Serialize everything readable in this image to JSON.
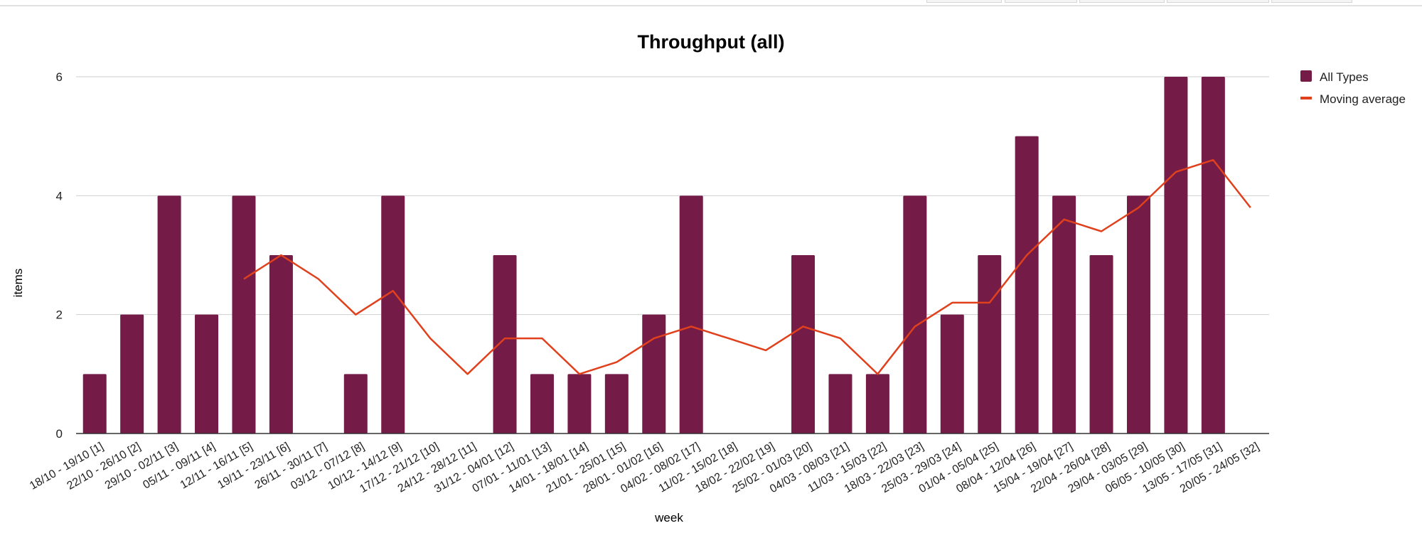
{
  "chart_data": {
    "type": "bar",
    "title": "Throughput (all)",
    "xlabel": "week",
    "ylabel": "items",
    "ylim": [
      0,
      6
    ],
    "yticks": [
      0,
      2,
      4,
      6
    ],
    "grid": true,
    "legend_position": "top-right",
    "categories": [
      "18/10 - 19/10 [1]",
      "22/10 - 26/10 [2]",
      "29/10 - 02/11 [3]",
      "05/11 - 09/11 [4]",
      "12/11 - 16/11 [5]",
      "19/11 - 23/11 [6]",
      "26/11 - 30/11 [7]",
      "03/12 - 07/12 [8]",
      "10/12 - 14/12 [9]",
      "17/12 - 21/12 [10]",
      "24/12 - 28/12 [11]",
      "31/12 - 04/01 [12]",
      "07/01 - 11/01 [13]",
      "14/01 - 18/01 [14]",
      "21/01 - 25/01 [15]",
      "28/01 - 01/02 [16]",
      "04/02 - 08/02 [17]",
      "11/02 - 15/02 [18]",
      "18/02 - 22/02 [19]",
      "25/02 - 01/03 [20]",
      "04/03 - 08/03 [21]",
      "11/03 - 15/03 [22]",
      "18/03 - 22/03 [23]",
      "25/03 - 29/03 [24]",
      "01/04 - 05/04 [25]",
      "08/04 - 12/04 [26]",
      "15/04 - 19/04 [27]",
      "22/04 - 26/04 [28]",
      "29/04 - 03/05 [29]",
      "06/05 - 10/05 [30]",
      "13/05 - 17/05 [31]",
      "20/05 - 24/05 [32]"
    ],
    "series": [
      {
        "name": "All Types",
        "type": "bar",
        "color": "#741b47",
        "values": [
          1,
          2,
          4,
          2,
          4,
          3,
          0,
          1,
          4,
          0,
          0,
          3,
          1,
          1,
          1,
          2,
          4,
          0,
          0,
          3,
          1,
          1,
          4,
          2,
          3,
          5,
          4,
          3,
          4,
          6,
          6,
          0
        ]
      },
      {
        "name": "Moving average",
        "type": "line",
        "color": "#e0401c",
        "values": [
          null,
          null,
          null,
          null,
          2.6,
          3.0,
          2.6,
          2.0,
          2.4,
          1.6,
          1.0,
          1.6,
          1.6,
          1.0,
          1.2,
          1.6,
          1.8,
          1.6,
          1.4,
          1.8,
          1.6,
          1.0,
          1.8,
          2.2,
          2.2,
          3.0,
          3.6,
          3.4,
          3.8,
          4.4,
          4.6,
          3.8
        ]
      }
    ]
  }
}
